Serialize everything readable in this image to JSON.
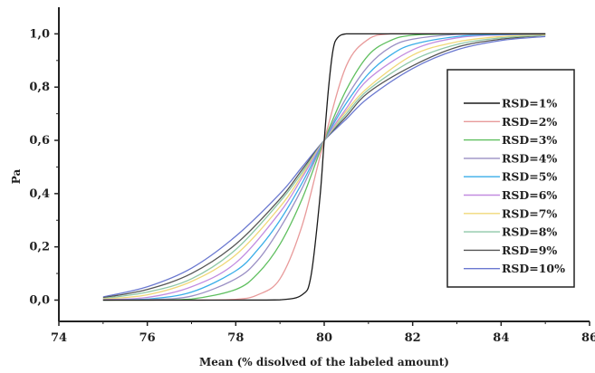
{
  "chart_data": {
    "type": "line",
    "xlabel": "Mean (% disolved of the labeled amount)",
    "ylabel": "Pa",
    "xlim": [
      74,
      86
    ],
    "ylim": [
      -0.08,
      1.1
    ],
    "x_ticks": [
      74,
      76,
      78,
      80,
      82,
      84,
      86
    ],
    "x_tick_labels": [
      "74",
      "76",
      "78",
      "80",
      "82",
      "84",
      "86"
    ],
    "y_ticks": [
      0.0,
      0.2,
      0.4,
      0.6,
      0.8,
      1.0
    ],
    "y_tick_labels": [
      "0,0",
      "0,2",
      "0,4",
      "0,6",
      "0,8",
      "1,0"
    ],
    "grid": false,
    "legend_position": "right",
    "series": [
      {
        "name": "RSD=1%",
        "color": "#1a1a1a",
        "x": [
          75,
          78,
          79,
          79.5,
          79.7,
          79.9,
          80.0,
          80.1,
          80.2,
          80.3,
          80.5,
          81,
          82,
          85
        ],
        "y": [
          0,
          0,
          0.001,
          0.02,
          0.09,
          0.38,
          0.6,
          0.8,
          0.94,
          0.985,
          1.0,
          1.0,
          1.0,
          1.0
        ]
      },
      {
        "name": "RSD=2%",
        "color": "#e89a9a",
        "x": [
          75,
          77,
          78,
          78.5,
          79,
          79.5,
          80,
          80.5,
          81,
          81.5,
          82,
          83,
          85
        ],
        "y": [
          0,
          0,
          0.003,
          0.02,
          0.08,
          0.28,
          0.6,
          0.88,
          0.98,
          1.0,
          1.0,
          1.0,
          1.0
        ]
      },
      {
        "name": "RSD=3%",
        "color": "#5fbf5f",
        "x": [
          75,
          76,
          77,
          78,
          78.5,
          79,
          79.5,
          80,
          80.5,
          81,
          81.5,
          82,
          83,
          85
        ],
        "y": [
          0,
          0,
          0.004,
          0.04,
          0.1,
          0.21,
          0.38,
          0.6,
          0.79,
          0.92,
          0.975,
          0.995,
          1.0,
          1.0
        ]
      },
      {
        "name": "RSD=4%",
        "color": "#9a8fc4",
        "x": [
          75,
          76,
          77,
          78,
          78.5,
          79,
          79.5,
          80,
          80.5,
          81,
          81.5,
          82,
          83,
          84,
          85
        ],
        "y": [
          0,
          0.002,
          0.015,
          0.08,
          0.15,
          0.27,
          0.42,
          0.6,
          0.76,
          0.88,
          0.95,
          0.98,
          0.998,
          1.0,
          1.0
        ]
      },
      {
        "name": "RSD=5%",
        "color": "#3aaee8",
        "x": [
          75,
          76,
          77,
          78,
          78.5,
          79,
          79.5,
          80,
          80.5,
          81,
          81.5,
          82,
          83,
          84,
          85
        ],
        "y": [
          0,
          0.004,
          0.03,
          0.11,
          0.19,
          0.3,
          0.44,
          0.6,
          0.74,
          0.85,
          0.92,
          0.96,
          0.99,
          0.998,
          1.0
        ]
      },
      {
        "name": "RSD=6%",
        "color": "#c28ce0",
        "x": [
          75,
          76,
          77,
          78,
          79,
          79.5,
          80,
          80.5,
          81,
          82,
          83,
          84,
          85
        ],
        "y": [
          0.002,
          0.01,
          0.05,
          0.14,
          0.33,
          0.46,
          0.6,
          0.72,
          0.83,
          0.94,
          0.985,
          0.996,
          1.0
        ]
      },
      {
        "name": "RSD=7%",
        "color": "#f0d878",
        "x": [
          75,
          76,
          77,
          78,
          79,
          79.5,
          80,
          80.5,
          81,
          82,
          83,
          84,
          85
        ],
        "y": [
          0.004,
          0.02,
          0.07,
          0.17,
          0.35,
          0.47,
          0.6,
          0.71,
          0.8,
          0.92,
          0.97,
          0.99,
          0.998
        ]
      },
      {
        "name": "RSD=8%",
        "color": "#8fc8a8",
        "x": [
          75,
          76,
          77,
          78,
          79,
          79.5,
          80,
          80.5,
          81,
          82,
          83,
          84,
          85
        ],
        "y": [
          0.006,
          0.03,
          0.08,
          0.19,
          0.37,
          0.48,
          0.6,
          0.7,
          0.79,
          0.9,
          0.96,
          0.985,
          0.996
        ]
      },
      {
        "name": "RSD=9%",
        "color": "#555555",
        "x": [
          75,
          76,
          77,
          78,
          79,
          79.5,
          80,
          80.5,
          81,
          82,
          83,
          84,
          85
        ],
        "y": [
          0.009,
          0.04,
          0.1,
          0.21,
          0.38,
          0.49,
          0.6,
          0.69,
          0.78,
          0.88,
          0.95,
          0.98,
          0.995
        ]
      },
      {
        "name": "RSD=10%",
        "color": "#6a78d0",
        "x": [
          75,
          76,
          77,
          78,
          79,
          79.5,
          80,
          80.5,
          81,
          82,
          83,
          84,
          85
        ],
        "y": [
          0.012,
          0.05,
          0.12,
          0.24,
          0.4,
          0.5,
          0.6,
          0.68,
          0.76,
          0.87,
          0.94,
          0.975,
          0.99
        ]
      }
    ]
  }
}
